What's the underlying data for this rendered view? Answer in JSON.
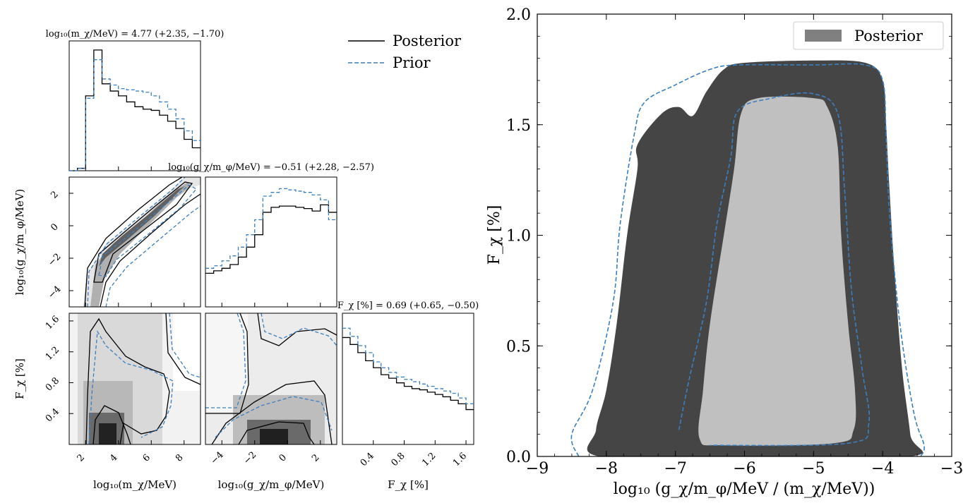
{
  "corner": {
    "m_title": "log₁₀(m_χ/MeV) = 4.77 (+2.35, −1.70)",
    "g_title": "log₁₀(g_χ/m_φ/MeV) = −0.51 (+2.28, −2.57)",
    "f_title": "F_χ [%] = 0.69 (+0.65, −0.50)",
    "labels": {
      "m": "log₁₀(m_χ/MeV)",
      "g": "log₁₀(g_χ/m_φ/MeV)",
      "f": "F_χ [%]"
    },
    "legend": {
      "posterior": "Posterior",
      "prior": "Prior"
    }
  },
  "contour": {
    "ylabel": "F_χ [%]",
    "xlabel": "log₁₀ (g_χ/m_φ/MeV / (m_χ/MeV))",
    "legend": "Posterior"
  },
  "colors": {
    "posterior": "#000000",
    "prior": "#3a7fbf",
    "dark": "#454545",
    "light": "#c0c0c0",
    "legend_patch": "#808080"
  },
  "chart_data": [
    {
      "type": "histogram",
      "panel": "m_chi_marginal",
      "x_edges": [
        1.0,
        1.5,
        2.0,
        2.5,
        3.0,
        3.5,
        4.0,
        4.5,
        5.0,
        5.5,
        6.0,
        6.5,
        7.0,
        7.5,
        8.0,
        8.5,
        9.0
      ],
      "xlim": [
        1,
        9
      ],
      "series": [
        {
          "name": "Posterior",
          "values": [
            0.0,
            0.02,
            0.62,
            1.0,
            0.72,
            0.66,
            0.62,
            0.57,
            0.53,
            0.51,
            0.5,
            0.46,
            0.41,
            0.35,
            0.26,
            0.19
          ]
        },
        {
          "name": "Prior",
          "values": [
            0.0,
            0.02,
            0.6,
            0.92,
            0.76,
            0.71,
            0.68,
            0.67,
            0.66,
            0.65,
            0.62,
            0.57,
            0.51,
            0.43,
            0.33,
            0.25
          ]
        }
      ]
    },
    {
      "type": "histogram",
      "panel": "g_chi_marginal",
      "x_edges": [
        -5.0,
        -4.5,
        -4.0,
        -3.5,
        -3.0,
        -2.5,
        -2.0,
        -1.5,
        -1.0,
        -0.5,
        0.0,
        0.5,
        1.0,
        1.5,
        2.0,
        2.5,
        3.0
      ],
      "xlim": [
        -5,
        3
      ],
      "series": [
        {
          "name": "Posterior",
          "values": [
            0.27,
            0.29,
            0.31,
            0.34,
            0.4,
            0.48,
            0.58,
            0.76,
            0.8,
            0.81,
            0.81,
            0.8,
            0.79,
            0.77,
            0.82,
            0.76
          ]
        },
        {
          "name": "Prior",
          "values": [
            0.31,
            0.33,
            0.37,
            0.41,
            0.48,
            0.58,
            0.7,
            0.89,
            0.92,
            0.95,
            0.94,
            0.93,
            0.92,
            0.9,
            0.86,
            0.7
          ]
        }
      ]
    },
    {
      "type": "histogram",
      "panel": "F_chi_marginal",
      "x_edges": [
        0.0,
        0.1,
        0.2,
        0.3,
        0.4,
        0.5,
        0.6,
        0.7,
        0.8,
        0.9,
        1.0,
        1.1,
        1.2,
        1.3,
        1.4,
        1.5,
        1.6,
        1.7
      ],
      "xlim": [
        0,
        1.7
      ],
      "xticks": [
        0.4,
        0.8,
        1.2,
        1.6
      ],
      "series": [
        {
          "name": "Posterior",
          "values": [
            0.92,
            0.86,
            0.79,
            0.72,
            0.66,
            0.6,
            0.57,
            0.53,
            0.5,
            0.48,
            0.47,
            0.45,
            0.43,
            0.41,
            0.38,
            0.35,
            0.3
          ]
        },
        {
          "name": "Prior",
          "values": [
            1.0,
            0.93,
            0.85,
            0.79,
            0.71,
            0.66,
            0.62,
            0.58,
            0.56,
            0.54,
            0.52,
            0.5,
            0.48,
            0.46,
            0.44,
            0.4,
            0.35
          ]
        }
      ]
    },
    {
      "type": "contour",
      "panel": "m_vs_g",
      "xlim": [
        1,
        9
      ],
      "ylim": [
        -5,
        3
      ],
      "xticks": [
        2,
        4,
        6,
        8
      ],
      "yticks": [
        -4,
        -2,
        0,
        2
      ],
      "ridge": {
        "start": [
          3,
          -2.5
        ],
        "end": [
          8,
          2.5
        ]
      }
    },
    {
      "type": "contour",
      "panel": "m_vs_F",
      "xlim": [
        1,
        9
      ],
      "ylim": [
        0,
        1.7
      ],
      "xticks": [
        2,
        4,
        6,
        8
      ],
      "yticks": [
        0.4,
        0.8,
        1.2,
        1.6
      ],
      "peak": [
        3.4,
        0.15
      ]
    },
    {
      "type": "contour",
      "panel": "g_vs_F",
      "xlim": [
        -5,
        3
      ],
      "ylim": [
        0,
        1.7
      ],
      "xticks": [
        -4,
        -2,
        0,
        2
      ],
      "peak": [
        -0.5,
        0.15
      ]
    },
    {
      "type": "contour",
      "panel": "main",
      "xlim": [
        -9,
        -3
      ],
      "ylim": [
        0,
        2
      ],
      "xticks": [
        -9,
        -8,
        -7,
        -6,
        -5,
        -4,
        -3
      ],
      "yticks": [
        0.0,
        0.5,
        1.0,
        1.5,
        2.0
      ],
      "regions": [
        {
          "level": "outer",
          "points": [
            [
              -8.1,
              0.0
            ],
            [
              -8.15,
              0.12
            ],
            [
              -8.0,
              0.3
            ],
            [
              -7.85,
              0.6
            ],
            [
              -7.7,
              1.0
            ],
            [
              -7.55,
              1.3
            ],
            [
              -7.55,
              1.41
            ],
            [
              -7.2,
              1.55
            ],
            [
              -6.95,
              1.58
            ],
            [
              -6.75,
              1.54
            ],
            [
              -6.55,
              1.65
            ],
            [
              -6.3,
              1.75
            ],
            [
              -6.0,
              1.78
            ],
            [
              -5.0,
              1.79
            ],
            [
              -4.25,
              1.78
            ],
            [
              -4.0,
              1.7
            ],
            [
              -3.95,
              1.5
            ],
            [
              -3.9,
              1.2
            ],
            [
              -3.82,
              0.8
            ],
            [
              -3.72,
              0.4
            ],
            [
              -3.6,
              0.1
            ],
            [
              -3.6,
              0.0
            ],
            [
              -6.0,
              0.0
            ]
          ]
        },
        {
          "level": "inner",
          "points": [
            [
              -6.65,
              0.08
            ],
            [
              -6.6,
              0.3
            ],
            [
              -6.5,
              0.6
            ],
            [
              -6.3,
              1.0
            ],
            [
              -6.15,
              1.3
            ],
            [
              -6.05,
              1.55
            ],
            [
              -5.8,
              1.62
            ],
            [
              -5.0,
              1.62
            ],
            [
              -4.8,
              1.58
            ],
            [
              -4.65,
              1.4
            ],
            [
              -4.6,
              1.0
            ],
            [
              -4.5,
              0.6
            ],
            [
              -4.4,
              0.3
            ],
            [
              -4.42,
              0.12
            ],
            [
              -4.7,
              0.06
            ],
            [
              -6.3,
              0.05
            ]
          ]
        }
      ],
      "prior_contours": [
        {
          "level": "outer",
          "points": [
            [
              -8.4,
              0.0
            ],
            [
              -8.5,
              0.1
            ],
            [
              -8.2,
              0.3
            ],
            [
              -7.9,
              0.7
            ],
            [
              -7.8,
              1.05
            ],
            [
              -7.6,
              1.45
            ],
            [
              -7.45,
              1.6
            ],
            [
              -7.0,
              1.68
            ],
            [
              -6.5,
              1.75
            ],
            [
              -6.1,
              1.77
            ],
            [
              -5.0,
              1.77
            ],
            [
              -4.25,
              1.77
            ],
            [
              -4.0,
              1.7
            ],
            [
              -3.95,
              1.45
            ],
            [
              -3.9,
              1.1
            ],
            [
              -3.75,
              0.6
            ],
            [
              -3.55,
              0.2
            ],
            [
              -3.4,
              0.05
            ],
            [
              -3.45,
              0.0
            ]
          ]
        },
        {
          "level": "inner",
          "points": [
            [
              -6.95,
              0.12
            ],
            [
              -6.8,
              0.35
            ],
            [
              -6.55,
              0.7
            ],
            [
              -6.4,
              1.05
            ],
            [
              -6.2,
              1.35
            ],
            [
              -6.1,
              1.56
            ],
            [
              -5.6,
              1.62
            ],
            [
              -5.0,
              1.64
            ],
            [
              -4.65,
              1.55
            ],
            [
              -4.55,
              1.2
            ],
            [
              -4.45,
              0.75
            ],
            [
              -4.3,
              0.4
            ],
            [
              -4.2,
              0.15
            ],
            [
              -4.5,
              0.06
            ],
            [
              -6.5,
              0.05
            ]
          ]
        }
      ]
    }
  ]
}
